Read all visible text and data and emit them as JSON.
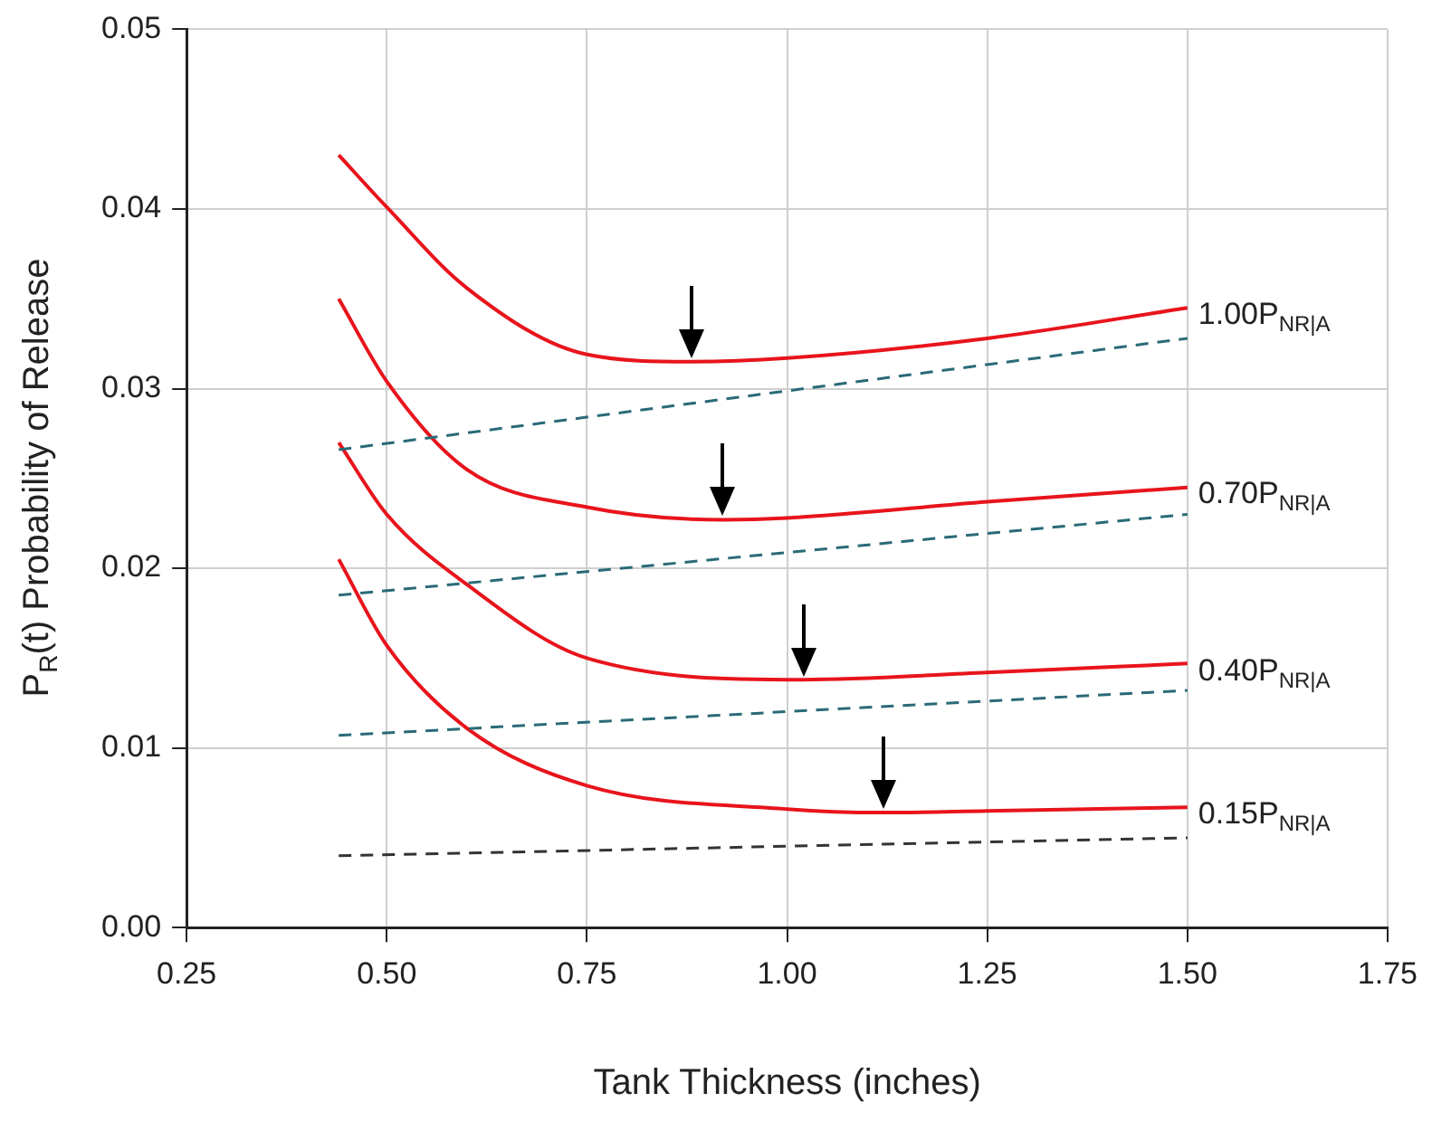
{
  "chart_data": {
    "type": "line",
    "xlabel": "Tank Thickness (inches)",
    "ylabel": "P$_{R}$(t)   Probability of Release",
    "xlim": [
      0.25,
      1.75
    ],
    "xticks": [
      {
        "value": 0.25,
        "label": "0.25"
      },
      {
        "value": 0.5,
        "label": "0.50"
      },
      {
        "value": 0.75,
        "label": "0.75"
      },
      {
        "value": 1.0,
        "label": "1.00"
      },
      {
        "value": 1.25,
        "label": "1.25"
      },
      {
        "value": 1.5,
        "label": "1.50"
      },
      {
        "value": 1.75,
        "label": "1.75"
      }
    ],
    "ylim": [
      0,
      0.05
    ],
    "yticks": [
      {
        "value": 0,
        "label": "0.00"
      },
      {
        "value": 0.01,
        "label": "0.01"
      },
      {
        "value": 0.02,
        "label": "0.02"
      },
      {
        "value": 0.03,
        "label": "0.03"
      },
      {
        "value": 0.04,
        "label": "0.04"
      },
      {
        "value": 0.05,
        "label": "0.05"
      }
    ],
    "grid": true,
    "marker": "none",
    "legend": false,
    "series": [
      {
        "name": "1.00P$_{NR|A}$",
        "color": "#e8141c",
        "line_style": "solid",
        "x": [
          0.44,
          0.5,
          0.6,
          0.75,
          0.88,
          1.0,
          1.25,
          1.5
        ],
        "values": [
          0.043,
          0.0401,
          0.0356,
          0.0319,
          0.0315,
          0.0317,
          0.0328,
          0.0345
        ]
      },
      {
        "color": "#2a6a78",
        "line_style": "dashed",
        "x": [
          0.44,
          1.5
        ],
        "values": [
          0.0266,
          0.0328
        ]
      },
      {
        "name": "0.70P$_{NR|A}$",
        "color": "#e8141c",
        "line_style": "solid",
        "x": [
          0.44,
          0.5,
          0.6,
          0.75,
          0.92,
          1.0,
          1.25,
          1.5
        ],
        "values": [
          0.035,
          0.0304,
          0.0255,
          0.0234,
          0.0227,
          0.0228,
          0.0237,
          0.0245
        ]
      },
      {
        "color": "#2a6a78",
        "line_style": "dashed",
        "x": [
          0.44,
          1.5
        ],
        "values": [
          0.0185,
          0.023
        ]
      },
      {
        "name": "0.40P$_{NR|A}$",
        "color": "#e8141c",
        "line_style": "solid",
        "x": [
          0.44,
          0.5,
          0.6,
          0.75,
          1.02,
          1.25,
          1.5
        ],
        "values": [
          0.027,
          0.023,
          0.0191,
          0.015,
          0.0138,
          0.0142,
          0.0147
        ]
      },
      {
        "color": "#2a6a78",
        "line_style": "dashed",
        "x": [
          0.44,
          1.5
        ],
        "values": [
          0.0107,
          0.0132
        ]
      },
      {
        "name": "0.15P$_{NR|A}$",
        "color": "#e8141c",
        "line_style": "solid",
        "x": [
          0.44,
          0.5,
          0.6,
          0.75,
          1.0,
          1.12,
          1.25,
          1.5
        ],
        "values": [
          0.0205,
          0.0157,
          0.0111,
          0.0079,
          0.0066,
          0.0064,
          0.0065,
          0.0067
        ]
      },
      {
        "color": "#333333",
        "line_style": "dashed",
        "x": [
          0.44,
          1.5
        ],
        "values": [
          0.004,
          0.005
        ]
      }
    ]
  }
}
